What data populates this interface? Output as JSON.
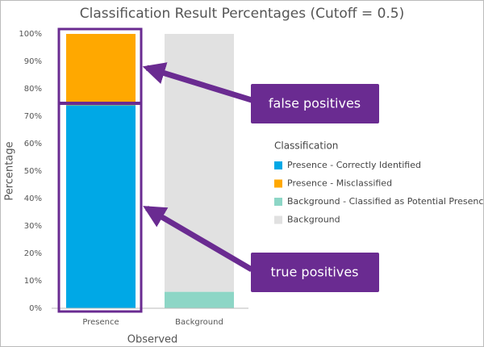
{
  "chart_data": {
    "type": "stacked_bar",
    "title": "Classification Result Percentages (Cutoff = 0.5)",
    "x_label": "Observed",
    "y_label": "Percentage",
    "categories": [
      "Presence",
      "Background"
    ],
    "series": [
      {
        "name": "Presence - Correctly Identified",
        "color": "#00a8e6",
        "values": [
          74,
          0
        ]
      },
      {
        "name": "Presence - Misclassified",
        "color": "#ffa800",
        "values": [
          26,
          0
        ]
      },
      {
        "name": "Background - Classified as Potential Presence",
        "color": "#8dd6c6",
        "values": [
          0,
          6
        ]
      },
      {
        "name": "Background",
        "color": "#e1e1e1",
        "values": [
          0,
          94
        ]
      }
    ],
    "legend_title": "Classification",
    "ylim": [
      0,
      100
    ],
    "yticks": [
      {
        "value": 0,
        "label": "0%"
      },
      {
        "value": 10,
        "label": "10%"
      },
      {
        "value": 20,
        "label": "20%"
      },
      {
        "value": 30,
        "label": "30%"
      },
      {
        "value": 40,
        "label": "40%"
      },
      {
        "value": 50,
        "label": "50%"
      },
      {
        "value": 60,
        "label": "60%"
      },
      {
        "value": 70,
        "label": "70%"
      },
      {
        "value": 80,
        "label": "80%"
      },
      {
        "value": 90,
        "label": "90%"
      },
      {
        "value": 100,
        "label": "100%"
      }
    ],
    "annotations": [
      "false positives",
      "true positives"
    ]
  }
}
